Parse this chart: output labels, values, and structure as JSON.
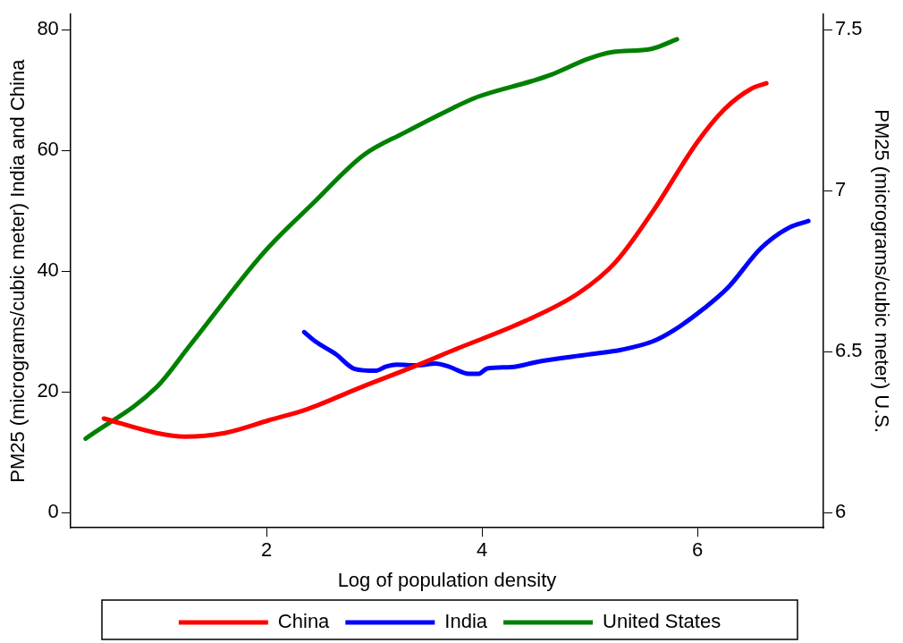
{
  "chart_data": {
    "type": "line",
    "xlabel": "Log of population density",
    "ylabel": "PM25 (micrograms/cubic meter) India and China",
    "y2label": "PM25 (micrograms/cubic meter) U.S.",
    "xlim": [
      0.18,
      7.17
    ],
    "xticks": [
      2,
      4,
      6
    ],
    "ylim": [
      -2.5,
      82.5
    ],
    "yticks": [
      0,
      20,
      40,
      60,
      80
    ],
    "y2lim": [
      5.953,
      7.547
    ],
    "y2ticks": [
      6,
      6.5,
      7,
      7.5
    ],
    "grid": false,
    "legend": "bottom",
    "marker": "none",
    "line_style": "solid",
    "series": [
      {
        "name": "China",
        "color": "#ff0000",
        "x": [
          0.49,
          0.98,
          1.24,
          1.61,
          2.02,
          2.37,
          2.88,
          3.41,
          3.76,
          4.37,
          4.9,
          5.24,
          5.59,
          6.0,
          6.25,
          6.5,
          6.64
        ],
        "values": [
          15.6,
          13.2,
          12.6,
          13.2,
          15.3,
          17.1,
          20.8,
          24.5,
          27.1,
          31.5,
          36.4,
          41.5,
          50.0,
          61.4,
          66.8,
          70.2,
          71.1
        ]
      },
      {
        "name": "India",
        "color": "#0000ff",
        "x": [
          2.35,
          2.45,
          2.64,
          2.82,
          3.01,
          3.11,
          3.21,
          3.4,
          3.57,
          3.69,
          3.88,
          3.97,
          4.05,
          4.27,
          4.52,
          4.99,
          5.3,
          5.59,
          5.78,
          6.06,
          6.28,
          6.59,
          6.85,
          7.03
        ],
        "values": [
          29.9,
          28.4,
          26.3,
          23.8,
          23.5,
          24.2,
          24.5,
          24.4,
          24.7,
          24.2,
          23.0,
          23.0,
          23.9,
          24.1,
          25.0,
          26.2,
          27.0,
          28.4,
          30.2,
          33.8,
          37.2,
          43.8,
          47.2,
          48.3
        ]
      },
      {
        "name": "United States",
        "color": "#008000",
        "axis": "y2",
        "x": [
          0.32,
          0.98,
          1.29,
          1.98,
          2.43,
          2.9,
          3.28,
          3.69,
          3.95,
          4.46,
          4.64,
          4.99,
          5.21,
          5.57,
          5.81
        ],
        "values": [
          6.23,
          6.39,
          6.52,
          6.81,
          6.96,
          7.11,
          7.18,
          7.25,
          7.29,
          7.34,
          7.36,
          7.41,
          7.43,
          7.44,
          7.47
        ]
      }
    ]
  }
}
